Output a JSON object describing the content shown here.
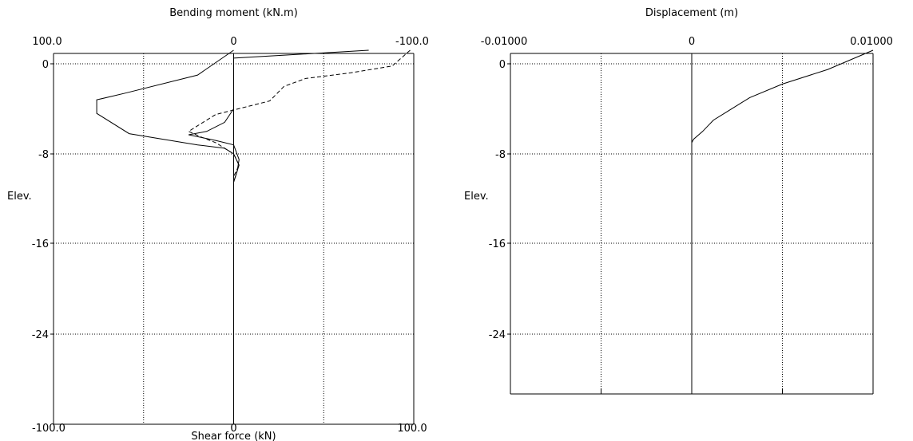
{
  "chart_data": [
    {
      "type": "line",
      "title": "Bending moment (kN.m)",
      "xlabel": "Shear force (kN)",
      "ylabel": "Elev.",
      "top_axis": {
        "label": "Bending moment (kN.m)",
        "tick_labels": [
          "100.0",
          "0",
          "-100.0"
        ],
        "range": [
          100,
          -100
        ]
      },
      "bottom_axis": {
        "label": "Shear force (kN)",
        "tick_labels": [
          "-100.0",
          "0",
          "100.0"
        ],
        "range": [
          -100,
          100
        ]
      },
      "y_tick_labels": [
        "0",
        "-8",
        "-16",
        "-24"
      ],
      "ylim": [
        -30,
        1.2
      ],
      "grid": true,
      "series": [
        {
          "axis": "top",
          "style": "solid",
          "points": [
            [
              0,
              1.2
            ],
            [
              20,
              -1
            ],
            [
              60,
              -2.6
            ],
            [
              76,
              -3.2
            ],
            [
              76,
              -4.4
            ],
            [
              58,
              -6.2
            ],
            [
              20,
              -7.2
            ],
            [
              5,
              -7.5
            ],
            [
              0,
              -8
            ],
            [
              -3,
              -9
            ],
            [
              -1,
              -10
            ],
            [
              0,
              -10.5
            ]
          ]
        },
        {
          "axis": "bottom",
          "style": "solid",
          "points": [
            [
              75,
              1.2
            ],
            [
              0,
              0.5
            ],
            [
              0,
              -4
            ],
            [
              -5,
              -5.2
            ],
            [
              -15,
              -6
            ],
            [
              -25,
              -6.3
            ],
            [
              -10,
              -6.8
            ],
            [
              0,
              -7.2
            ],
            [
              3,
              -8.5
            ],
            [
              2,
              -9.5
            ],
            [
              0,
              -10.5
            ]
          ]
        },
        {
          "axis": "bottom",
          "style": "dashed",
          "points": [
            [
              98,
              1.2
            ],
            [
              88,
              -0.2
            ],
            [
              65,
              -0.8
            ],
            [
              40,
              -1.3
            ],
            [
              28,
              -2
            ],
            [
              20,
              -3.3
            ],
            [
              -10,
              -4.5
            ],
            [
              -20,
              -5.5
            ],
            [
              -25,
              -6
            ],
            [
              -18,
              -6.5
            ],
            [
              -10,
              -7
            ],
            [
              -5,
              -7.5
            ],
            [
              0,
              -8
            ],
            [
              3,
              -9
            ],
            [
              0,
              -10
            ]
          ]
        }
      ]
    },
    {
      "type": "line",
      "title": "Displacement (m)",
      "xlabel": "",
      "ylabel": "Elev.",
      "top_axis": {
        "label": "Displacement (m)",
        "tick_labels": [
          "-0.01000",
          "0",
          "0.01000"
        ],
        "range": [
          -0.01,
          0.01
        ]
      },
      "y_tick_labels": [
        "0",
        "-8",
        "-16",
        "-24"
      ],
      "ylim": [
        -30,
        1.2
      ],
      "grid": true,
      "series": [
        {
          "axis": "top",
          "style": "solid",
          "points": [
            [
              0.01,
              1.2
            ],
            [
              0.0075,
              -0.5
            ],
            [
              0.005,
              -1.8
            ],
            [
              0.0032,
              -3
            ],
            [
              0.002,
              -4.2
            ],
            [
              0.0012,
              -5
            ],
            [
              0.0006,
              -6
            ],
            [
              0.0001,
              -6.7
            ],
            [
              0,
              -7
            ]
          ]
        }
      ]
    }
  ]
}
